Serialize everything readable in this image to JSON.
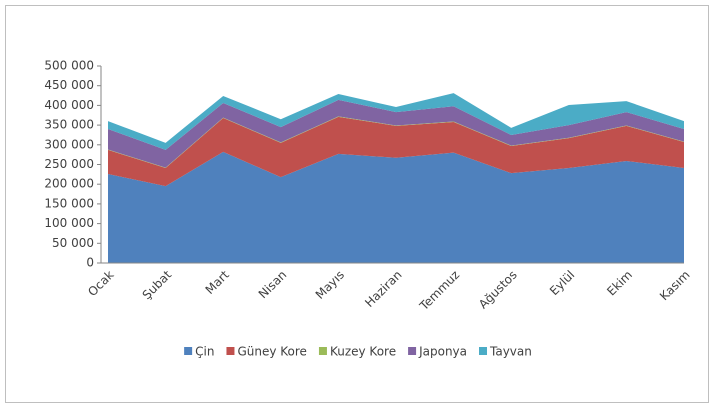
{
  "chart_data": {
    "type": "area",
    "categories": [
      "Ocak",
      "Şubat",
      "Mart",
      "Nisan",
      "Mayıs",
      "Haziran",
      "Temmuz",
      "Ağustos",
      "Eylül",
      "Ekim",
      "Kasım"
    ],
    "series": [
      {
        "name": "Çin",
        "color": "#4f81bd",
        "values": [
          226000,
          195000,
          282000,
          218000,
          277000,
          267000,
          280000,
          228000,
          241000,
          259000,
          241000
        ]
      },
      {
        "name": "Güney Kore",
        "color": "#c0504d",
        "values": [
          61000,
          46000,
          86000,
          87000,
          94000,
          81000,
          78000,
          69000,
          76000,
          89000,
          66000
        ]
      },
      {
        "name": "Kuzey Kore",
        "color": "#9bbb59",
        "values": [
          1000,
          1000,
          1000,
          1000,
          1000,
          1000,
          1000,
          1000,
          1000,
          1000,
          1000
        ]
      },
      {
        "name": "Japonya",
        "color": "#8064a2",
        "values": [
          52000,
          45000,
          37000,
          39000,
          42000,
          34000,
          39000,
          27000,
          32000,
          34000,
          32000
        ]
      },
      {
        "name": "Tayvan",
        "color": "#4bacc6",
        "values": [
          20000,
          18000,
          18000,
          20000,
          15000,
          13000,
          33000,
          18000,
          51000,
          28000,
          20000
        ]
      }
    ],
    "stacked": true,
    "ylim": [
      0,
      500000
    ],
    "yticks": [
      0,
      {
        "value": 50000,
        "label": "50 000"
      },
      {
        "value": 100000,
        "label": "100 000"
      },
      {
        "value": 150000,
        "label": "150 000"
      },
      {
        "value": 200000,
        "label": "200 000"
      },
      {
        "value": 250000,
        "label": "250 000"
      },
      {
        "value": 300000,
        "label": "300 000"
      },
      {
        "value": 350000,
        "label": "350 000"
      },
      {
        "value": 400000,
        "label": "400 000"
      },
      {
        "value": 450000,
        "label": "450 000"
      },
      {
        "value": 500000,
        "label": "500 000"
      }
    ],
    "legend": "bottom"
  }
}
